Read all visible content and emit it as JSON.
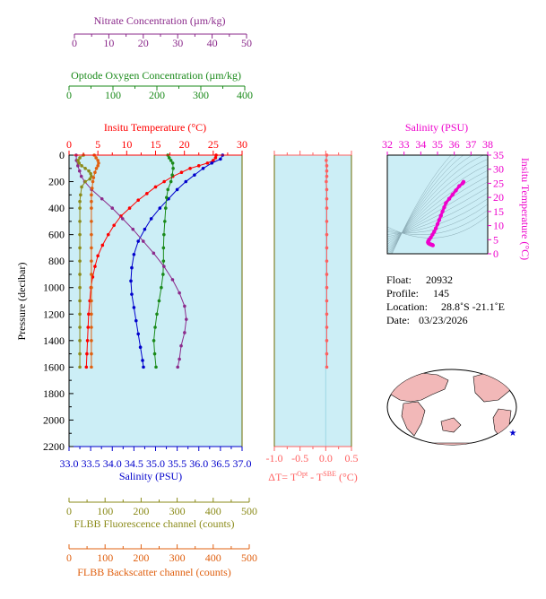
{
  "colors": {
    "nitrate": "#8b2a8b",
    "oxygen": "#1a8a1a",
    "temperature": "#ff0000",
    "salinity": "#0000cc",
    "fluorescence": "#8b8b1a",
    "backscatter": "#e06010",
    "delta": "#ff6060",
    "ts": "#ee00cc",
    "panel_bg": "#cceef6",
    "frame": "#6b6b00"
  },
  "axes": {
    "nitrate": {
      "title": "Nitrate Concentration (µm/kg)",
      "range": [
        0,
        50
      ],
      "ticks": [
        "0",
        "10",
        "20",
        "30",
        "40",
        "50"
      ]
    },
    "oxygen": {
      "title": "Optode Oxygen Concentration (µm/kg)",
      "range": [
        0,
        400
      ],
      "ticks": [
        "0",
        "100",
        "200",
        "300",
        "400"
      ]
    },
    "temperature": {
      "title": "Insitu Temperature (°C)",
      "range": [
        0,
        30
      ],
      "ticks": [
        "0",
        "5",
        "10",
        "15",
        "20",
        "25",
        "30"
      ]
    },
    "salinity": {
      "title": "Salinity (PSU)",
      "range": [
        33.0,
        37.0
      ],
      "ticks": [
        "33.0",
        "33.5",
        "34.0",
        "34.5",
        "35.0",
        "35.5",
        "36.0",
        "36.5",
        "37.0"
      ]
    },
    "pressure": {
      "title": "Pressure (decibar)",
      "range": [
        0,
        2200
      ],
      "ticks": [
        "0",
        "200",
        "400",
        "600",
        "800",
        "1000",
        "1200",
        "1400",
        "1600",
        "1800",
        "2000",
        "2200"
      ]
    },
    "fluorescence": {
      "title": "FLBB Fluorescence channel (counts)",
      "range": [
        0,
        500
      ],
      "ticks": [
        "0",
        "100",
        "200",
        "300",
        "400",
        "500"
      ]
    },
    "backscatter": {
      "title": "FLBB Backscatter channel (counts)",
      "range": [
        0,
        500
      ],
      "ticks": [
        "0",
        "100",
        "200",
        "300",
        "400",
        "500"
      ]
    },
    "delta": {
      "title_main": "ΔT= T",
      "title_sup1": "Opt",
      "title_mid": " - T",
      "title_sup2": "SBE",
      "title_end": " (°C)",
      "range": [
        -1.0,
        0.5
      ],
      "ticks": [
        "-1.0",
        "-0.5",
        "0.0",
        "0.5"
      ]
    },
    "ts_salinity": {
      "title": "Salinity (PSU)",
      "range": [
        32,
        38
      ],
      "ticks": [
        "32",
        "33",
        "34",
        "35",
        "36",
        "37",
        "38"
      ]
    },
    "ts_temperature": {
      "title": "Insitu Temperature (°C)",
      "range": [
        0,
        35
      ],
      "ticks": [
        "0",
        "5",
        "10",
        "15",
        "20",
        "25",
        "30",
        "35"
      ]
    }
  },
  "info": {
    "float_label": "Float:",
    "float_value": "20932",
    "profile_label": "Profile:",
    "profile_value": "145",
    "location_label": "Location:",
    "location_value": "28.8˚S  -21.1˚E",
    "date_label": "Date:",
    "date_value": "03/23/2026"
  },
  "chart_data": [
    {
      "type": "line",
      "name": "Insitu Temperature",
      "x_axis": "temperature",
      "points": [
        [
          25.5,
          0
        ],
        [
          25.4,
          20
        ],
        [
          25.0,
          40
        ],
        [
          24.0,
          60
        ],
        [
          22.5,
          80
        ],
        [
          21.0,
          100
        ],
        [
          19.5,
          130
        ],
        [
          18.0,
          160
        ],
        [
          16.5,
          200
        ],
        [
          15.0,
          240
        ],
        [
          13.5,
          290
        ],
        [
          12.0,
          340
        ],
        [
          10.5,
          400
        ],
        [
          9.0,
          460
        ],
        [
          7.8,
          530
        ],
        [
          6.8,
          600
        ],
        [
          5.8,
          680
        ],
        [
          5.0,
          760
        ],
        [
          4.5,
          840
        ],
        [
          4.1,
          920
        ],
        [
          3.8,
          1000
        ],
        [
          3.6,
          1100
        ],
        [
          3.4,
          1200
        ],
        [
          3.3,
          1300
        ],
        [
          3.2,
          1400
        ],
        [
          3.1,
          1500
        ],
        [
          3.0,
          1600
        ]
      ]
    },
    {
      "type": "line",
      "name": "Salinity",
      "x_axis": "salinity",
      "points": [
        [
          36.55,
          0
        ],
        [
          36.5,
          30
        ],
        [
          36.3,
          60
        ],
        [
          36.1,
          100
        ],
        [
          35.9,
          150
        ],
        [
          35.7,
          200
        ],
        [
          35.5,
          260
        ],
        [
          35.3,
          330
        ],
        [
          35.1,
          400
        ],
        [
          34.9,
          480
        ],
        [
          34.75,
          560
        ],
        [
          34.6,
          650
        ],
        [
          34.5,
          750
        ],
        [
          34.45,
          850
        ],
        [
          34.43,
          950
        ],
        [
          34.45,
          1050
        ],
        [
          34.5,
          1150
        ],
        [
          34.55,
          1250
        ],
        [
          34.6,
          1350
        ],
        [
          34.65,
          1450
        ],
        [
          34.7,
          1550
        ],
        [
          34.72,
          1600
        ]
      ]
    },
    {
      "type": "line",
      "name": "Optode Oxygen Concentration",
      "x_axis": "oxygen",
      "points": [
        [
          225,
          0
        ],
        [
          228,
          20
        ],
        [
          232,
          40
        ],
        [
          236,
          60
        ],
        [
          237,
          100
        ],
        [
          235,
          150
        ],
        [
          232,
          200
        ],
        [
          225,
          260
        ],
        [
          222,
          320
        ],
        [
          220,
          400
        ],
        [
          218,
          500
        ],
        [
          216,
          600
        ],
        [
          215,
          700
        ],
        [
          215,
          800
        ],
        [
          214,
          900
        ],
        [
          210,
          1000
        ],
        [
          205,
          1100
        ],
        [
          200,
          1200
        ],
        [
          196,
          1300
        ],
        [
          193,
          1400
        ],
        [
          195,
          1500
        ],
        [
          198,
          1600
        ]
      ]
    },
    {
      "type": "line",
      "name": "Nitrate Concentration",
      "x_axis": "nitrate",
      "points": [
        [
          0.5,
          0
        ],
        [
          0.6,
          40
        ],
        [
          1.0,
          80
        ],
        [
          1.5,
          120
        ],
        [
          2.0,
          160
        ],
        [
          3.0,
          200
        ],
        [
          5.0,
          260
        ],
        [
          8.0,
          330
        ],
        [
          11.0,
          400
        ],
        [
          14.0,
          480
        ],
        [
          17.0,
          560
        ],
        [
          20.0,
          650
        ],
        [
          23.0,
          740
        ],
        [
          26.0,
          840
        ],
        [
          28.5,
          940
        ],
        [
          30.5,
          1040
        ],
        [
          32.0,
          1140
        ],
        [
          32.5,
          1240
        ],
        [
          32.0,
          1340
        ],
        [
          31.0,
          1440
        ],
        [
          30.5,
          1540
        ],
        [
          30.0,
          1600
        ]
      ]
    },
    {
      "type": "line",
      "name": "FLBB Fluorescence channel",
      "x_axis": "fluorescence",
      "points": [
        [
          40,
          0
        ],
        [
          30,
          20
        ],
        [
          25,
          40
        ],
        [
          28,
          60
        ],
        [
          35,
          80
        ],
        [
          45,
          100
        ],
        [
          55,
          120
        ],
        [
          60,
          140
        ],
        [
          62,
          160
        ],
        [
          58,
          180
        ],
        [
          45,
          200
        ],
        [
          35,
          240
        ],
        [
          32,
          300
        ],
        [
          30,
          350
        ],
        [
          30,
          400
        ],
        [
          30,
          500
        ],
        [
          30,
          600
        ],
        [
          30,
          700
        ],
        [
          30,
          800
        ],
        [
          30,
          900
        ],
        [
          30,
          1000
        ],
        [
          30,
          1100
        ],
        [
          30,
          1200
        ],
        [
          30,
          1300
        ],
        [
          30,
          1400
        ],
        [
          30,
          1500
        ],
        [
          30,
          1600
        ]
      ]
    },
    {
      "type": "line",
      "name": "FLBB Backscatter channel",
      "x_axis": "backscatter",
      "points": [
        [
          70,
          0
        ],
        [
          75,
          20
        ],
        [
          80,
          40
        ],
        [
          82,
          60
        ],
        [
          80,
          80
        ],
        [
          76,
          100
        ],
        [
          72,
          130
        ],
        [
          68,
          170
        ],
        [
          66,
          200
        ],
        [
          64,
          250
        ],
        [
          62,
          300
        ],
        [
          62,
          350
        ],
        [
          62,
          400
        ],
        [
          62,
          500
        ],
        [
          62,
          600
        ],
        [
          62,
          700
        ],
        [
          62,
          800
        ],
        [
          62,
          900
        ],
        [
          62,
          1000
        ],
        [
          62,
          1100
        ],
        [
          62,
          1200
        ],
        [
          62,
          1300
        ],
        [
          62,
          1400
        ],
        [
          62,
          1500
        ],
        [
          62,
          1600
        ]
      ]
    },
    {
      "type": "line",
      "name": "Delta T",
      "x_axis": "delta",
      "points": [
        [
          0.02,
          0
        ],
        [
          0.01,
          40
        ],
        [
          0.02,
          80
        ],
        [
          0.02,
          120
        ],
        [
          0.02,
          160
        ],
        [
          0.01,
          200
        ],
        [
          0.02,
          260
        ],
        [
          0.02,
          330
        ],
        [
          0.02,
          400
        ],
        [
          0.02,
          500
        ],
        [
          0.02,
          600
        ],
        [
          0.02,
          700
        ],
        [
          0.02,
          800
        ],
        [
          0.02,
          900
        ],
        [
          0.02,
          1000
        ],
        [
          0.02,
          1100
        ],
        [
          0.02,
          1200
        ],
        [
          0.02,
          1300
        ],
        [
          0.02,
          1400
        ],
        [
          0.02,
          1500
        ],
        [
          0.02,
          1600
        ]
      ]
    },
    {
      "type": "scatter",
      "name": "T-S diagram",
      "x_axis": "ts_salinity",
      "y_axis": "ts_temperature",
      "points": [
        [
          36.55,
          25.5
        ],
        [
          36.5,
          25.0
        ],
        [
          36.3,
          24.0
        ],
        [
          36.1,
          22.5
        ],
        [
          35.9,
          21.0
        ],
        [
          35.7,
          19.5
        ],
        [
          35.5,
          18.0
        ],
        [
          35.4,
          16.5
        ],
        [
          35.3,
          15.0
        ],
        [
          35.2,
          13.5
        ],
        [
          35.1,
          12.0
        ],
        [
          35.0,
          10.5
        ],
        [
          34.9,
          9.0
        ],
        [
          34.8,
          7.8
        ],
        [
          34.7,
          6.8
        ],
        [
          34.6,
          5.8
        ],
        [
          34.5,
          5.0
        ],
        [
          34.45,
          4.5
        ],
        [
          34.43,
          4.1
        ],
        [
          34.45,
          3.8
        ],
        [
          34.5,
          3.6
        ],
        [
          34.55,
          3.4
        ],
        [
          34.6,
          3.3
        ],
        [
          34.65,
          3.2
        ],
        [
          34.7,
          3.1
        ],
        [
          34.72,
          3.0
        ]
      ]
    }
  ]
}
